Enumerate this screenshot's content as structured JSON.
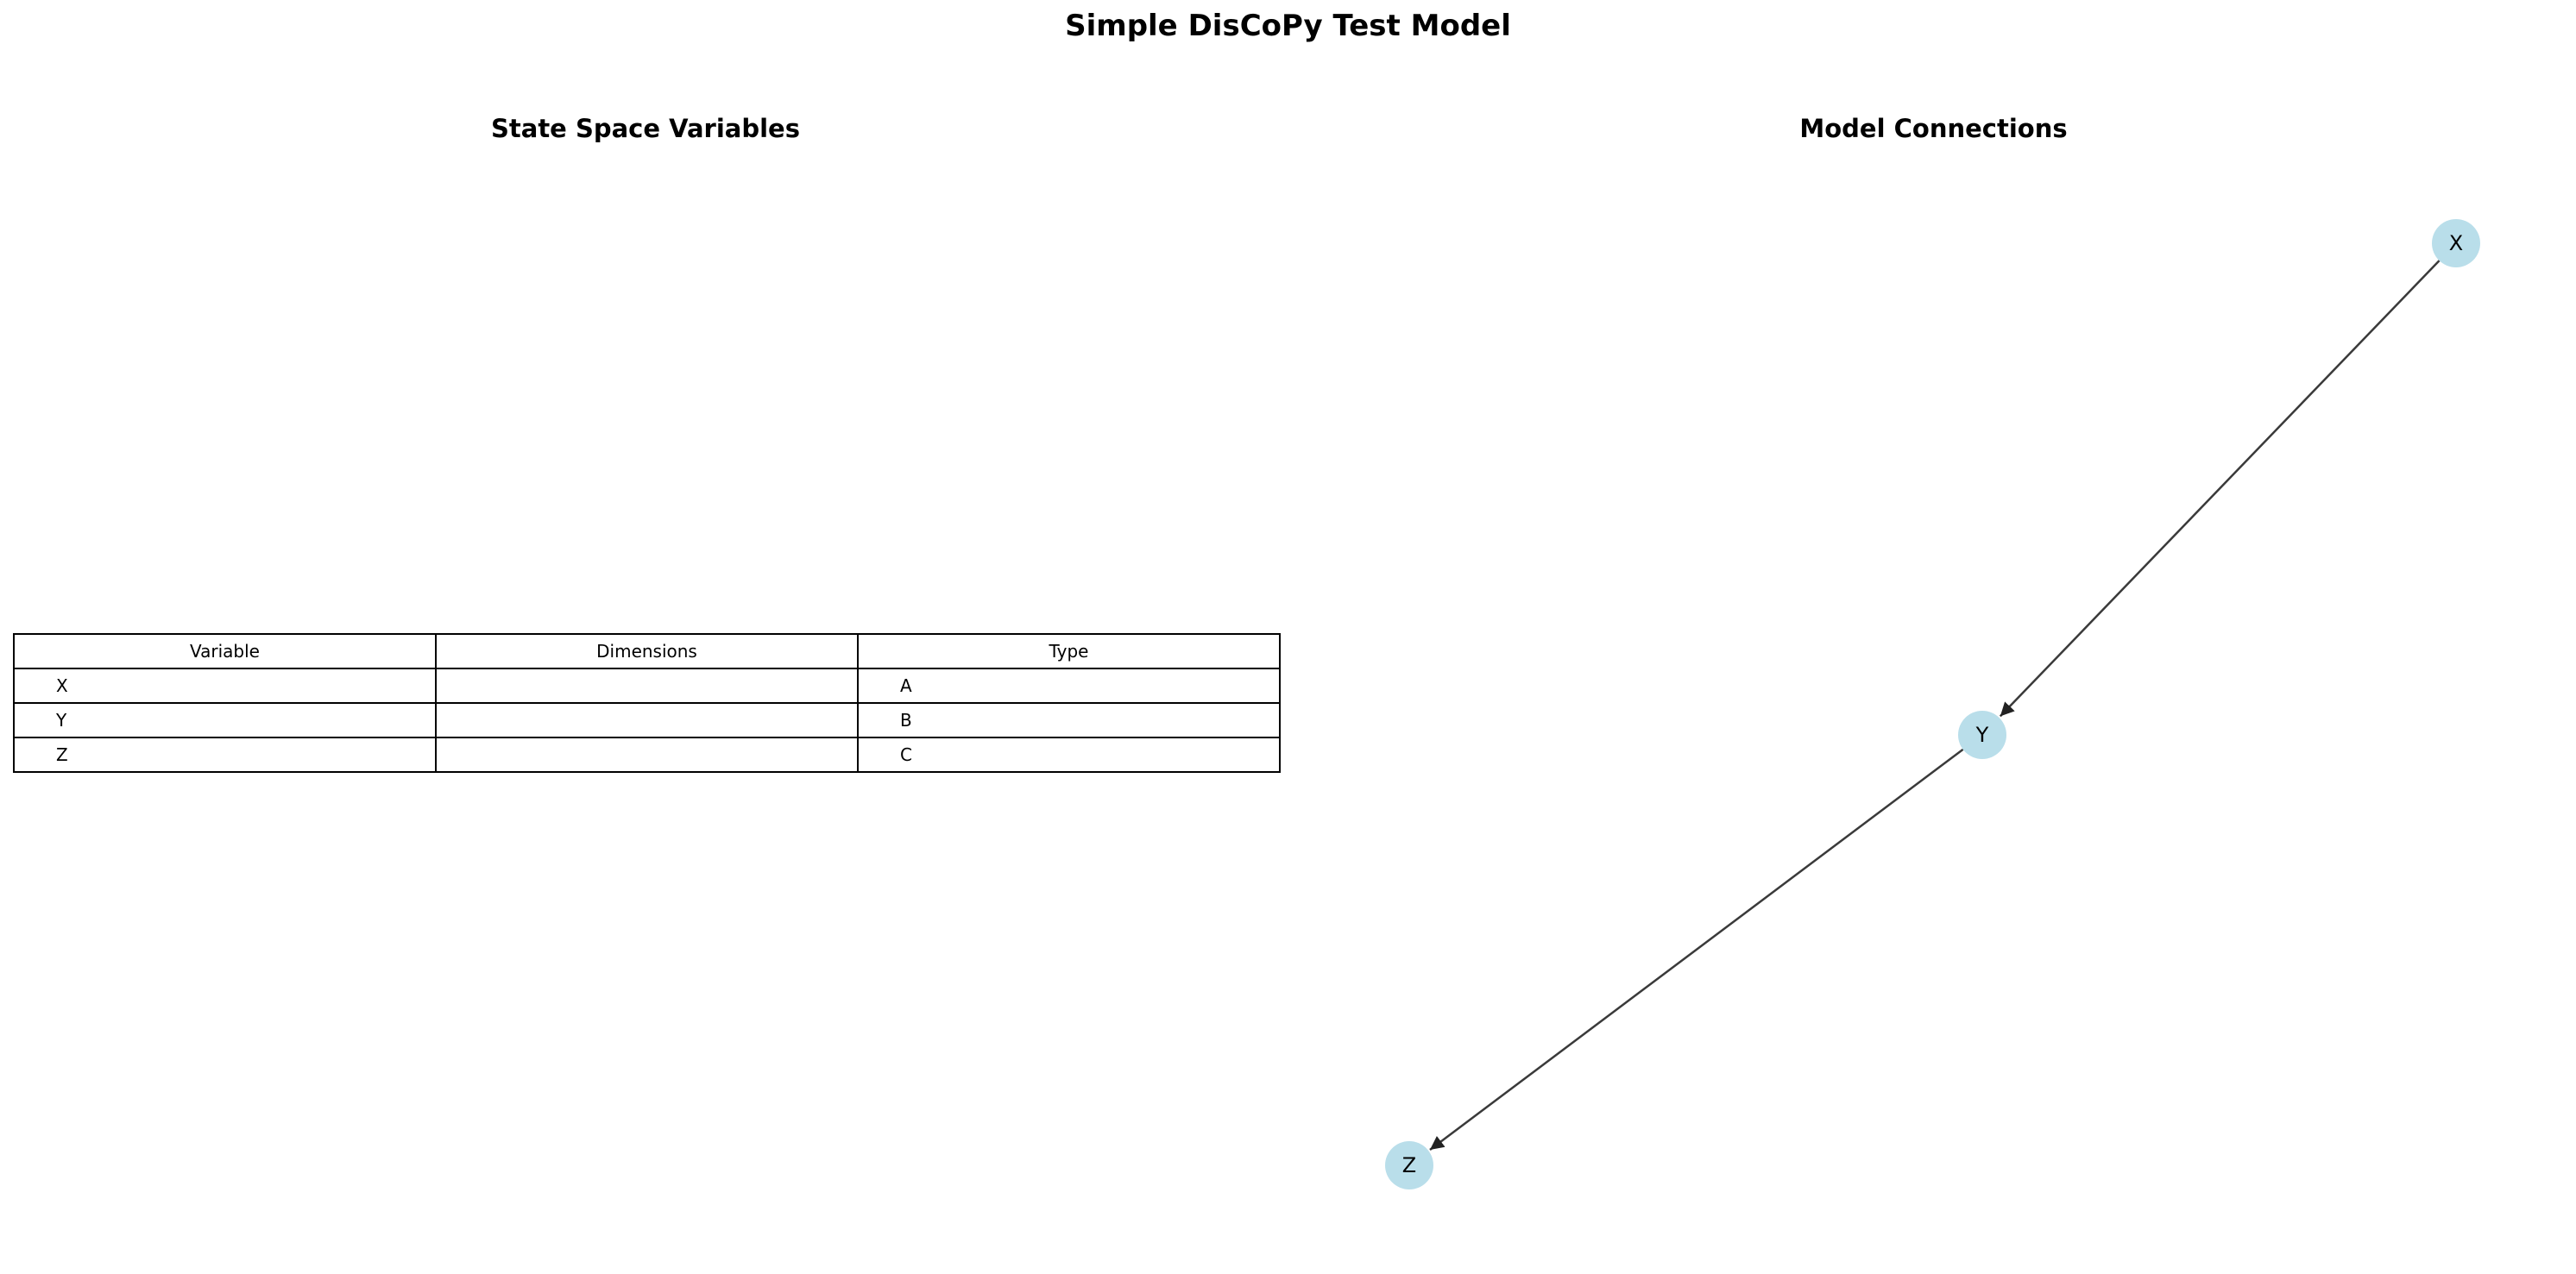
{
  "title": "Simple DisCoPy Test Model",
  "left_panel": {
    "title": "State Space Variables",
    "table": {
      "headers": [
        "Variable",
        "Dimensions",
        "Type"
      ],
      "rows": [
        {
          "variable": "X",
          "dimensions": "",
          "type": "A"
        },
        {
          "variable": "Y",
          "dimensions": "",
          "type": "B"
        },
        {
          "variable": "Z",
          "dimensions": "",
          "type": "C"
        }
      ]
    }
  },
  "right_panel": {
    "title": "Model Connections",
    "graph": {
      "nodes": [
        {
          "id": "X",
          "label": "X"
        },
        {
          "id": "Y",
          "label": "Y"
        },
        {
          "id": "Z",
          "label": "Z"
        }
      ],
      "edges": [
        {
          "from": "X",
          "to": "Y"
        },
        {
          "from": "Y",
          "to": "Z"
        }
      ],
      "colors": {
        "node_fill": "#add8e6",
        "edge": "#3a3a3a",
        "label": "#000000"
      }
    }
  }
}
